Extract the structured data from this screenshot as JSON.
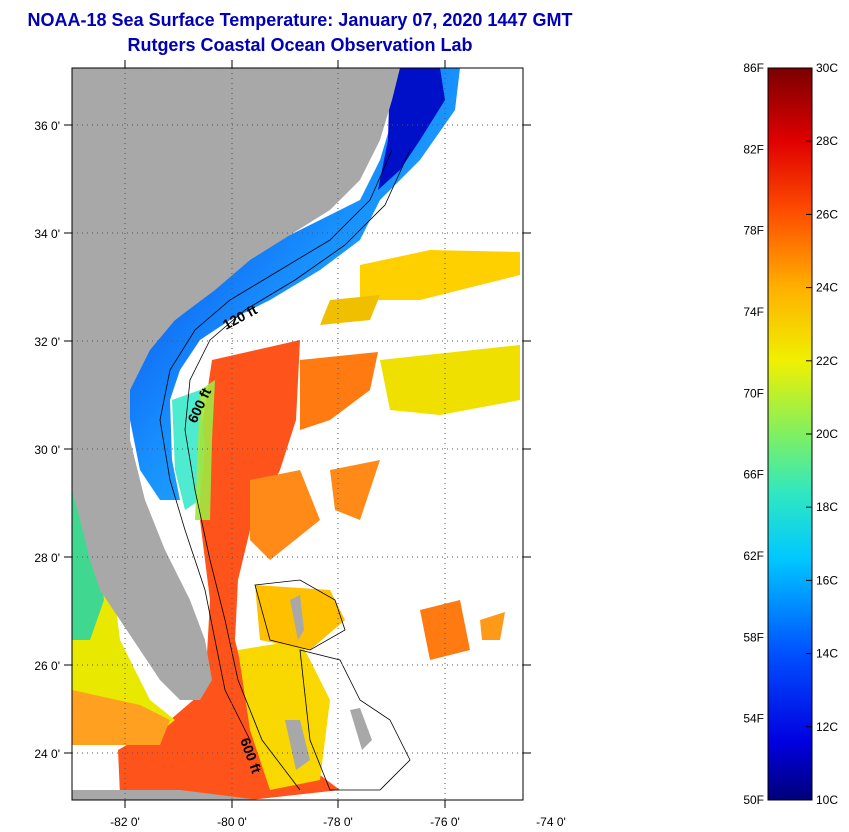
{
  "title": {
    "line1": "NOAA-18 Sea Surface Temperature:  January 07, 2020 1447 GMT",
    "line2": "Rutgers Coastal Ocean Observation Lab"
  },
  "map": {
    "lat_labels": [
      "36 0'",
      "34 0'",
      "32 0'",
      "30 0'",
      "28 0'",
      "26 0'",
      "24 0'"
    ],
    "lon_labels": [
      "-82 0'",
      "-80 0'",
      "-78 0'",
      "-76 0'",
      "-74 0'"
    ],
    "contour_labels": [
      "120 ft",
      "600 ft",
      "600 ft"
    ],
    "colors": {
      "land": "#a8a8a8",
      "missing": "#ffffff"
    }
  },
  "colorbar": {
    "f_labels": [
      "86F",
      "82F",
      "78F",
      "74F",
      "70F",
      "66F",
      "62F",
      "58F",
      "54F",
      "50F"
    ],
    "c_labels": [
      "30C",
      "28C",
      "26C",
      "24C",
      "22C",
      "20C",
      "18C",
      "16C",
      "14C",
      "12C",
      "10C"
    ],
    "range_c": [
      10,
      30
    ],
    "range_f": [
      50,
      86
    ]
  }
}
